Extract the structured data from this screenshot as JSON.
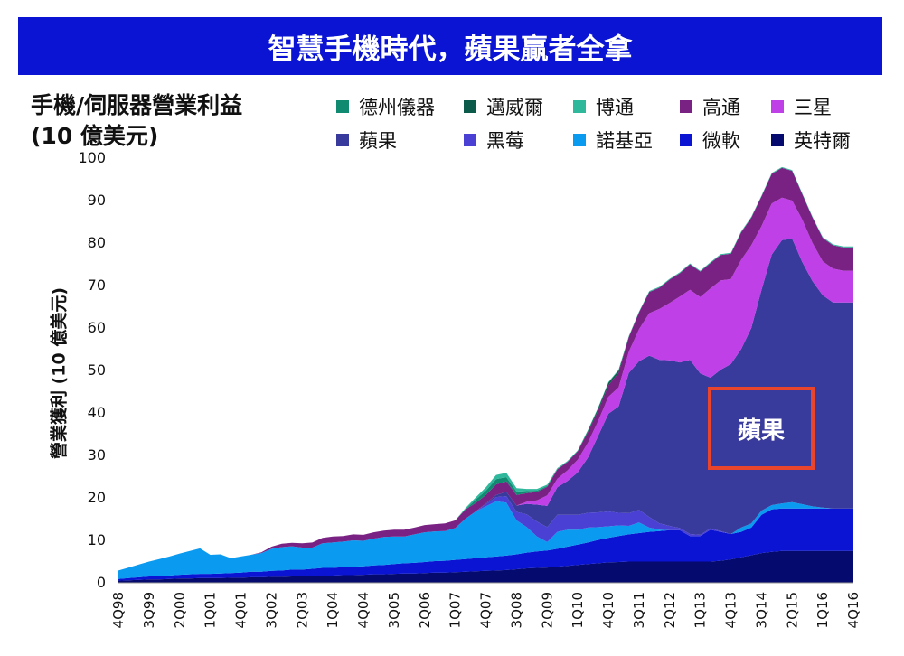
{
  "banner": {
    "title": "智慧手機時代，蘋果贏者全拿"
  },
  "panel": {
    "title_line1": "手機/伺服器營業利益",
    "title_line2": "(10 億美元)"
  },
  "chart_data": {
    "type": "area",
    "stacked": true,
    "ylabel": "營業獲利 (10 億美元)",
    "ylim": [
      0,
      100
    ],
    "yticks": [
      0,
      10,
      20,
      30,
      40,
      50,
      60,
      70,
      80,
      90,
      100
    ],
    "grid": false,
    "legend_position": "top",
    "quarters": [
      "4Q98",
      "1Q99",
      "2Q99",
      "3Q99",
      "4Q99",
      "1Q00",
      "2Q00",
      "3Q00",
      "4Q00",
      "1Q01",
      "2Q01",
      "3Q01",
      "4Q01",
      "1Q02",
      "2Q02",
      "3Q02",
      "4Q02",
      "1Q03",
      "2Q03",
      "3Q03",
      "4Q03",
      "1Q04",
      "2Q04",
      "3Q04",
      "4Q04",
      "1Q05",
      "2Q05",
      "3Q05",
      "4Q05",
      "1Q06",
      "2Q06",
      "3Q06",
      "4Q06",
      "1Q07",
      "2Q07",
      "3Q07",
      "4Q07",
      "1Q08",
      "2Q08",
      "3Q08",
      "4Q08",
      "1Q09",
      "2Q09",
      "3Q09",
      "4Q09",
      "1Q10",
      "2Q10",
      "3Q10",
      "4Q10",
      "1Q11",
      "2Q11",
      "3Q11",
      "4Q11",
      "1Q12",
      "2Q12",
      "3Q12",
      "4Q12",
      "1Q13",
      "2Q13",
      "3Q13",
      "4Q13",
      "1Q14",
      "2Q14",
      "3Q14",
      "4Q14",
      "1Q15",
      "2Q15",
      "3Q15",
      "4Q15",
      "1Q16",
      "2Q16",
      "3Q16",
      "4Q16"
    ],
    "tick_labels": [
      "4Q98",
      "3Q99",
      "2Q00",
      "1Q01",
      "4Q01",
      "3Q02",
      "2Q03",
      "1Q04",
      "4Q04",
      "3Q05",
      "2Q06",
      "1Q07",
      "4Q07",
      "3Q08",
      "2Q09",
      "1Q10",
      "4Q10",
      "3Q11",
      "2Q12",
      "1Q13",
      "4Q13",
      "3Q14",
      "2Q15",
      "1Q16",
      "4Q16"
    ],
    "series": [
      {
        "name": "英特爾",
        "color": "#050a6e",
        "values": [
          0.5,
          0.6,
          0.7,
          0.8,
          0.8,
          0.9,
          1.0,
          1.0,
          1.1,
          1.1,
          1.1,
          1.2,
          1.2,
          1.3,
          1.3,
          1.4,
          1.4,
          1.5,
          1.5,
          1.6,
          1.7,
          1.7,
          1.8,
          1.8,
          1.9,
          2.0,
          2.0,
          2.1,
          2.2,
          2.2,
          2.3,
          2.4,
          2.4,
          2.5,
          2.6,
          2.7,
          2.8,
          2.9,
          3.0,
          3.2,
          3.4,
          3.5,
          3.6,
          3.8,
          4.0,
          4.2,
          4.4,
          4.6,
          4.8,
          4.9,
          5.0,
          5.0,
          5.0,
          5.0,
          5.0,
          5.0,
          5.0,
          5.0,
          5.0,
          5.2,
          5.5,
          6.0,
          6.5,
          7.0,
          7.3,
          7.5,
          7.5,
          7.5,
          7.5,
          7.5,
          7.5,
          7.5,
          7.5
        ]
      },
      {
        "name": "微軟",
        "color": "#0a14d2",
        "values": [
          0.4,
          0.5,
          0.6,
          0.7,
          0.8,
          0.8,
          0.9,
          1.0,
          1.0,
          1.0,
          1.1,
          1.1,
          1.2,
          1.3,
          1.3,
          1.4,
          1.5,
          1.6,
          1.6,
          1.7,
          1.8,
          1.8,
          1.9,
          2.0,
          2.0,
          2.1,
          2.2,
          2.3,
          2.4,
          2.5,
          2.6,
          2.7,
          2.8,
          2.9,
          3.0,
          3.1,
          3.2,
          3.3,
          3.4,
          3.5,
          3.7,
          3.9,
          4.0,
          4.2,
          4.5,
          4.8,
          5.1,
          5.5,
          5.8,
          6.1,
          6.4,
          6.7,
          7.0,
          7.2,
          7.4,
          7.4,
          6.0,
          6.0,
          7.5,
          6.8,
          6.0,
          6.0,
          6.5,
          9.0,
          10.0,
          10.0,
          10.0,
          10.0,
          10.0,
          10.0,
          10.0,
          10.0,
          10.0
        ]
      },
      {
        "name": "諾基亞",
        "color": "#0a9af0",
        "values": [
          2.0,
          2.5,
          3.0,
          3.5,
          4.0,
          4.5,
          5.0,
          5.5,
          6.0,
          4.5,
          4.5,
          3.5,
          3.8,
          4.0,
          4.4,
          5.2,
          5.5,
          5.5,
          5.2,
          5.0,
          5.8,
          6.0,
          6.0,
          6.2,
          6.0,
          6.3,
          6.6,
          6.5,
          6.3,
          6.7,
          7.0,
          7.0,
          7.0,
          7.5,
          9.5,
          11.0,
          12.0,
          13.0,
          12.5,
          8.0,
          6.0,
          3.5,
          2.0,
          4.0,
          4.0,
          3.5,
          3.5,
          3.0,
          2.7,
          2.5,
          2.0,
          2.5,
          1.0,
          0.3,
          0,
          0,
          0,
          0,
          0,
          0,
          0,
          1.0,
          1.0,
          1.0,
          1.0,
          1.2,
          1.5,
          1.0,
          0.5,
          0.2,
          0.0,
          0.0,
          0.0
        ]
      },
      {
        "name": "黑莓",
        "color": "#4a40d4",
        "values": [
          0,
          0,
          0,
          0,
          0,
          0,
          0,
          0,
          0,
          0,
          0,
          0,
          0,
          0,
          0,
          0,
          0,
          0,
          0,
          0,
          0,
          0,
          0,
          0,
          0,
          0,
          0,
          0,
          0,
          0,
          0,
          0,
          0,
          0,
          0,
          0,
          0.5,
          1.0,
          1.5,
          2.0,
          3.0,
          3.5,
          3.5,
          4.0,
          3.5,
          3.5,
          3.5,
          3.5,
          3.5,
          3.0,
          3.0,
          3.0,
          2.5,
          1.5,
          1.0,
          0.5,
          0.5,
          0.3,
          0.3,
          0.2,
          0,
          0,
          0,
          0,
          0,
          0,
          0,
          0,
          0,
          0,
          0,
          0,
          0
        ]
      },
      {
        "name": "蘋果",
        "color": "#383a9c",
        "values": [
          0,
          0,
          0,
          0,
          0,
          0,
          0,
          0,
          0,
          0,
          0,
          0,
          0,
          0,
          0,
          0,
          0,
          0,
          0,
          0,
          0,
          0,
          0,
          0,
          0,
          0,
          0,
          0,
          0,
          0,
          0,
          0,
          0,
          0,
          0,
          0,
          0.2,
          0.5,
          1.0,
          1.5,
          2.5,
          4.0,
          5.0,
          6.5,
          8.0,
          10.0,
          13.0,
          18.0,
          23.0,
          25.0,
          33.0,
          35.0,
          38.0,
          38.5,
          39.0,
          39.0,
          41.0,
          38.0,
          35.5,
          38.0,
          40.0,
          42.0,
          46.0,
          52.0,
          59.0,
          62.0,
          62.0,
          57.0,
          53.0,
          50.0,
          48.5,
          48.5,
          48.5
        ]
      },
      {
        "name": "三星",
        "color": "#c040e8",
        "values": [
          0,
          0,
          0,
          0,
          0,
          0,
          0,
          0,
          0,
          0,
          0,
          0,
          0,
          0,
          0,
          0,
          0,
          0,
          0,
          0,
          0,
          0,
          0,
          0,
          0,
          0,
          0,
          0,
          0,
          0,
          0,
          0,
          0,
          0,
          0,
          0,
          0,
          0,
          0,
          0,
          0.5,
          1.0,
          2.5,
          2.0,
          2.5,
          3.0,
          3.5,
          3.5,
          4.0,
          4.5,
          5.0,
          7.5,
          10.0,
          12.0,
          13.5,
          15.5,
          16.5,
          18.0,
          21.0,
          21.0,
          20.0,
          21.0,
          19.5,
          15.0,
          12.0,
          10.0,
          9.0,
          10.0,
          9.0,
          8.0,
          8.0,
          7.5,
          7.5
        ]
      },
      {
        "name": "高通",
        "color": "#7a2284",
        "values": [
          0,
          0,
          0,
          0,
          0,
          0,
          0,
          0,
          0,
          0,
          0,
          0,
          0,
          0,
          0.2,
          0.5,
          0.8,
          0.8,
          1.0,
          1.2,
          1.3,
          1.4,
          1.3,
          1.4,
          1.4,
          1.5,
          1.5,
          1.6,
          1.6,
          1.6,
          1.7,
          1.7,
          1.8,
          1.8,
          2.2,
          2.0,
          2.0,
          2.5,
          2.5,
          2.5,
          2.0,
          2.0,
          2.0,
          2.2,
          2.0,
          2.0,
          2.5,
          2.5,
          2.7,
          3.5,
          3.5,
          4.0,
          5.0,
          5.0,
          5.5,
          5.5,
          6.0,
          6.0,
          6.0,
          6.0,
          6.0,
          6.5,
          6.5,
          7.0,
          7.0,
          7.0,
          7.0,
          6.0,
          6.0,
          5.5,
          5.5,
          5.5,
          5.5
        ]
      },
      {
        "name": "德州儀器",
        "color": "#118a72",
        "values": [
          0,
          0,
          0,
          0,
          0,
          0,
          0,
          0,
          0,
          0,
          0,
          0,
          0,
          0,
          0,
          0,
          0,
          0,
          0,
          0,
          0,
          0,
          0,
          0,
          0,
          0,
          0,
          0,
          0,
          0,
          0,
          0,
          0,
          0,
          0,
          0.8,
          1.0,
          1.2,
          1.0,
          0.8,
          0.5,
          0.3,
          0.2,
          0.1,
          0,
          0,
          0,
          0,
          0,
          0,
          0,
          0,
          0,
          0,
          0,
          0,
          0,
          0,
          0,
          0,
          0,
          0,
          0,
          0,
          0,
          0,
          0,
          0,
          0,
          0,
          0,
          0,
          0
        ]
      },
      {
        "name": "邁威爾",
        "color": "#0b5a4a",
        "values": [
          0,
          0,
          0,
          0,
          0,
          0,
          0,
          0,
          0,
          0,
          0,
          0,
          0,
          0,
          0,
          0,
          0,
          0,
          0,
          0,
          0,
          0,
          0,
          0,
          0,
          0,
          0,
          0,
          0,
          0,
          0,
          0,
          0,
          0,
          0,
          0,
          0,
          0,
          0,
          0,
          0,
          0,
          0,
          0,
          0,
          0,
          0.3,
          0.5,
          0.6,
          0.5,
          0,
          0,
          0,
          0,
          0,
          0,
          0,
          0,
          0,
          0,
          0,
          0,
          0,
          0,
          0,
          0,
          0,
          0,
          0,
          0,
          0,
          0,
          0
        ]
      },
      {
        "name": "博通",
        "color": "#30b89c",
        "values": [
          0,
          0,
          0,
          0,
          0,
          0,
          0,
          0,
          0,
          0,
          0,
          0,
          0,
          0,
          0,
          0,
          0,
          0,
          0,
          0,
          0,
          0,
          0,
          0,
          0,
          0,
          0,
          0,
          0,
          0,
          0,
          0,
          0,
          0,
          0.3,
          0.5,
          0.8,
          1.0,
          1.0,
          0.8,
          0.5,
          0.4,
          0.3,
          0.2,
          0.2,
          0.2,
          0.2,
          0.2,
          0.2,
          0.2,
          0.2,
          0.2,
          0.2,
          0.2,
          0.2,
          0.2,
          0.2,
          0.2,
          0.2,
          0.2,
          0.2,
          0.2,
          0.2,
          0.2,
          0.2,
          0.2,
          0.2,
          0.2,
          0.2,
          0.2,
          0.2,
          0.2,
          0.2
        ]
      }
    ],
    "annotation": {
      "text": "蘋果"
    }
  },
  "legend": {
    "items": [
      {
        "label": "德州儀器",
        "color": "#118a72"
      },
      {
        "label": "邁威爾",
        "color": "#0b5a4a"
      },
      {
        "label": "博通",
        "color": "#30b89c"
      },
      {
        "label": "高通",
        "color": "#7a2284"
      },
      {
        "label": "三星",
        "color": "#c040e8"
      },
      {
        "label": "蘋果",
        "color": "#383a9c"
      },
      {
        "label": "黑莓",
        "color": "#4a40d4"
      },
      {
        "label": "諾基亞",
        "color": "#0a9af0"
      },
      {
        "label": "微軟",
        "color": "#0a14d2"
      },
      {
        "label": "英特爾",
        "color": "#050a6e"
      }
    ]
  }
}
